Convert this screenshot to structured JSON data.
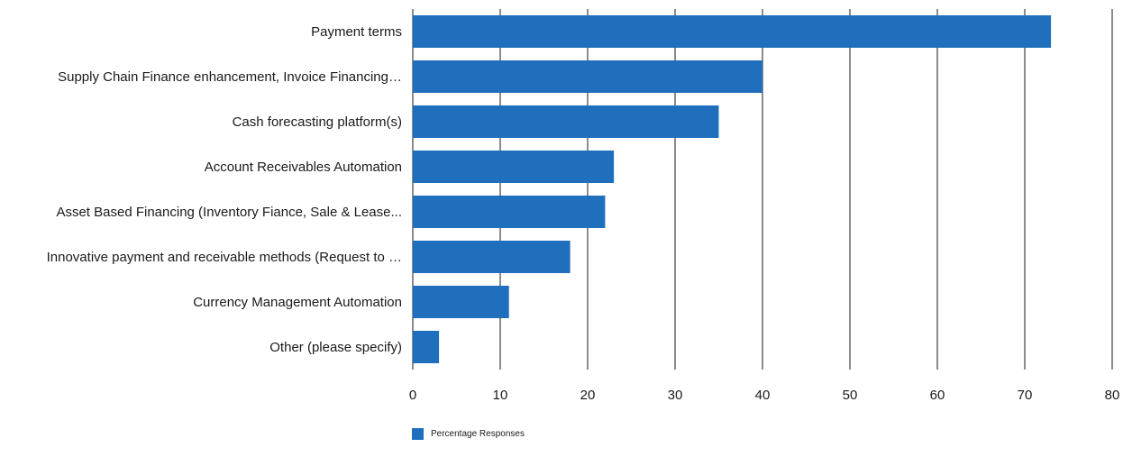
{
  "chart_data": {
    "type": "bar",
    "orientation": "horizontal",
    "categories": [
      "Payment terms",
      "Supply Chain Finance enhancement, Invoice Financing…",
      "Cash forecasting platform(s)",
      "Account Receivables Automation",
      "Asset Based Financing (Inventory Fiance, Sale & Lease...",
      "Innovative payment and receivable methods (Request to …",
      "Currency Management Automation",
      "Other (please specify)"
    ],
    "series": [
      {
        "name": "Percentage Responses",
        "values": [
          73,
          40,
          35,
          23,
          22,
          18,
          11,
          3
        ],
        "color": "#1f6fbd"
      }
    ],
    "xlim": [
      0,
      80
    ],
    "xticks": [
      "0",
      "10",
      "20",
      "30",
      "40",
      "50",
      "60",
      "70",
      "80"
    ],
    "grid": true,
    "legend_position": "bottom-center"
  }
}
